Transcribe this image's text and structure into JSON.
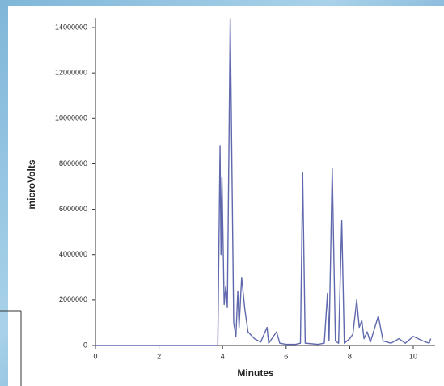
{
  "chart_data": {
    "type": "line",
    "x_label": "Minutes",
    "y_label": "microVolts",
    "xlim": [
      0,
      10.6
    ],
    "ylim": [
      0,
      14500000
    ],
    "xticks": [
      0,
      2,
      4,
      6,
      8,
      10
    ],
    "yticks": [
      0,
      2000000,
      4000000,
      6000000,
      8000000,
      10000000,
      12000000,
      14000000
    ],
    "grid": false,
    "series": [
      {
        "color": "#5f68ad",
        "x": [
          0,
          3.85,
          3.92,
          3.95,
          3.98,
          4.05,
          4.1,
          4.15,
          4.24,
          4.35,
          4.42,
          4.48,
          4.52,
          4.6,
          4.7,
          4.8,
          5.0,
          5.2,
          5.4,
          5.45,
          5.7,
          5.8,
          6.0,
          6.3,
          6.45,
          6.52,
          6.6,
          7.0,
          7.2,
          7.3,
          7.35,
          7.45,
          7.55,
          7.65,
          7.75,
          7.83,
          8.0,
          8.1,
          8.22,
          8.3,
          8.38,
          8.45,
          8.55,
          8.65,
          8.9,
          9.05,
          9.3,
          9.55,
          9.75,
          10.0,
          10.3,
          10.5,
          10.55
        ],
        "values": [
          0,
          0,
          8800000,
          4000000,
          7400000,
          1800000,
          2600000,
          1700000,
          14400000,
          1000000,
          400000,
          2400000,
          800000,
          3000000,
          1600000,
          600000,
          300000,
          150000,
          800000,
          100000,
          600000,
          100000,
          50000,
          50000,
          100000,
          7600000,
          100000,
          50000,
          100000,
          2300000,
          200000,
          7800000,
          200000,
          100000,
          5500000,
          100000,
          300000,
          500000,
          2000000,
          800000,
          1100000,
          300000,
          600000,
          150000,
          1300000,
          200000,
          100000,
          300000,
          100000,
          400000,
          200000,
          100000,
          300000
        ]
      }
    ]
  }
}
